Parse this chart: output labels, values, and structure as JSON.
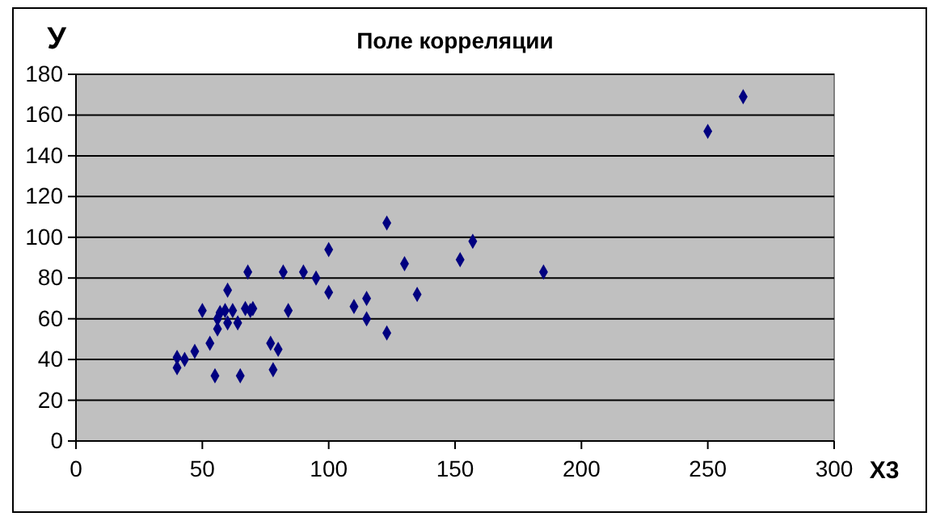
{
  "chart_data": {
    "type": "scatter",
    "title": "Поле корреляции",
    "xlabel": "X3",
    "ylabel": "У",
    "x": [
      40,
      40,
      43,
      47,
      50,
      53,
      55,
      56,
      56,
      57,
      59,
      60,
      60,
      62,
      64,
      65,
      67,
      68,
      69,
      70,
      77,
      78,
      80,
      82,
      84,
      90,
      95,
      100,
      100,
      110,
      115,
      115,
      123,
      123,
      130,
      135,
      152,
      157,
      185,
      250,
      264
    ],
    "series": [
      {
        "color": "#000080",
        "values": [
          41,
          36,
          40,
          44,
          64,
          48,
          32,
          55,
          60,
          63,
          64,
          74,
          58,
          64,
          58,
          32,
          65,
          83,
          64,
          65,
          48,
          35,
          45,
          83,
          64,
          83,
          80,
          94,
          73,
          66,
          70,
          60,
          53,
          107,
          87,
          72,
          89,
          98,
          83,
          152,
          169
        ]
      }
    ],
    "xlim": [
      0,
      300
    ],
    "xticks": [
      0,
      50,
      100,
      150,
      200,
      250,
      300
    ],
    "ylim": [
      0,
      180
    ],
    "yticks": [
      0,
      20,
      40,
      60,
      80,
      100,
      120,
      140,
      160,
      180
    ],
    "grid": "y",
    "marker": "diamond"
  }
}
